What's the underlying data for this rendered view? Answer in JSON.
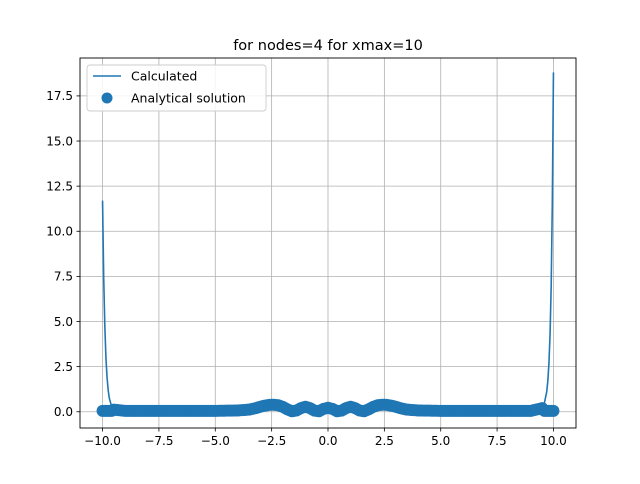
{
  "chart_data": {
    "type": "line",
    "title": "for nodes=4 for xmax=10",
    "xlabel": "",
    "ylabel": "",
    "xlim": [
      -11.0,
      11.0
    ],
    "ylim": [
      -0.9,
      19.6
    ],
    "xticks": [
      -10.0,
      -7.5,
      -5.0,
      -2.5,
      0.0,
      2.5,
      5.0,
      7.5,
      10.0
    ],
    "xtick_labels": [
      "−10.0",
      "−7.5",
      "−5.0",
      "−2.5",
      "0.0",
      "2.5",
      "5.0",
      "7.5",
      "10.0"
    ],
    "yticks": [
      0.0,
      2.5,
      5.0,
      7.5,
      10.0,
      12.5,
      15.0,
      17.5
    ],
    "ytick_labels": [
      "0.0",
      "2.5",
      "5.0",
      "7.5",
      "10.0",
      "12.5",
      "15.0",
      "17.5"
    ],
    "grid": true,
    "legend": "upper left",
    "series": [
      {
        "name": "Calculated",
        "kind": "line",
        "color": "#1f77b4",
        "x": [
          -10.0,
          -9.95,
          -9.9,
          -9.85,
          -9.8,
          -9.75,
          -9.7,
          -9.6,
          -9.5,
          -9.0,
          -8.0,
          -7.0,
          -6.0,
          -5.0,
          -4.0,
          -3.5,
          -3.2,
          -3.0,
          -2.8,
          -2.6,
          -2.4,
          -2.2,
          -2.0,
          -1.8,
          -1.6,
          -1.4,
          -1.2,
          -1.0,
          -0.8,
          -0.6,
          -0.4,
          -0.2,
          0.0,
          0.2,
          0.4,
          0.6,
          0.8,
          1.0,
          1.2,
          1.4,
          1.6,
          1.8,
          2.0,
          2.2,
          2.4,
          2.6,
          2.8,
          3.0,
          3.2,
          3.5,
          4.0,
          5.0,
          6.0,
          7.0,
          8.0,
          9.0,
          9.5,
          9.6,
          9.7,
          9.75,
          9.8,
          9.85,
          9.9,
          9.95,
          10.0
        ],
        "y": [
          11.7,
          7.5,
          4.8,
          3.0,
          1.9,
          1.2,
          0.75,
          0.3,
          0.12,
          0.05,
          0.05,
          0.05,
          0.05,
          0.05,
          0.07,
          0.12,
          0.2,
          0.28,
          0.34,
          0.38,
          0.39,
          0.36,
          0.27,
          0.13,
          0.03,
          0.07,
          0.2,
          0.28,
          0.2,
          0.06,
          0.03,
          0.16,
          0.22,
          0.16,
          0.03,
          0.06,
          0.2,
          0.28,
          0.2,
          0.07,
          0.03,
          0.13,
          0.27,
          0.36,
          0.39,
          0.38,
          0.34,
          0.28,
          0.2,
          0.12,
          0.07,
          0.05,
          0.05,
          0.05,
          0.05,
          0.05,
          0.2,
          0.5,
          1.1,
          1.7,
          2.7,
          4.3,
          7.0,
          11.6,
          18.8
        ]
      },
      {
        "name": "Analytical solution",
        "kind": "scatter",
        "color": "#1f77b4",
        "x_range": [
          -10.0,
          10.0
        ],
        "point_count": 201
      }
    ]
  }
}
